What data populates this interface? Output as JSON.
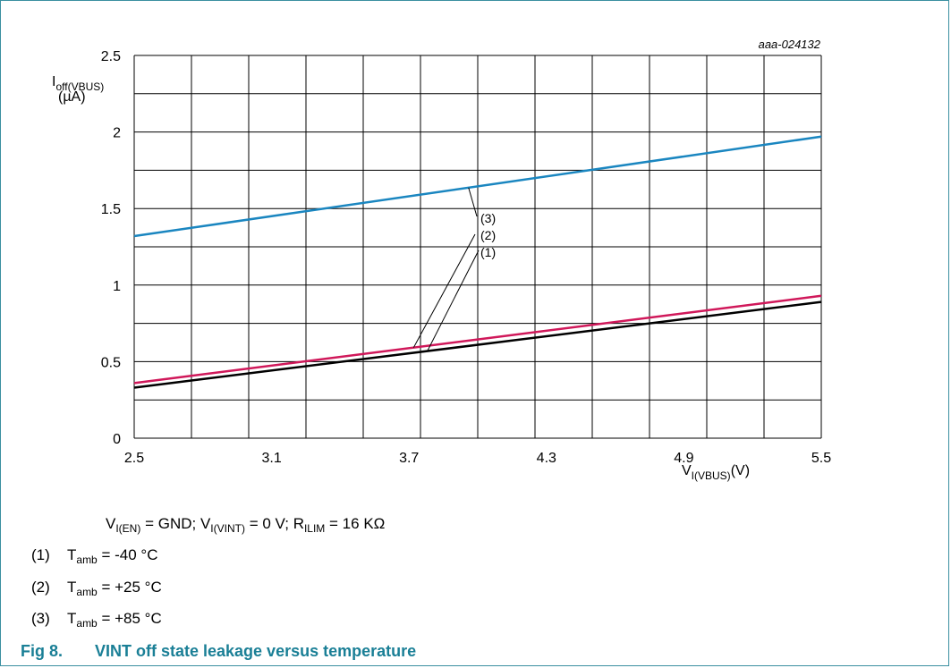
{
  "doc_id": "aaa-024132",
  "axis": {
    "y_main": "I",
    "y_sub": "off(VBUS)",
    "y_unit": "(µA)",
    "x_main": "V",
    "x_sub": "I(VBUS)",
    "x_unit": "(V)"
  },
  "chart_data": {
    "type": "line",
    "xlim": [
      2.5,
      5.5
    ],
    "ylim": [
      0,
      2.5
    ],
    "x_ticks": [
      "2.5",
      "3.1",
      "3.7",
      "4.3",
      "4.9",
      "5.5"
    ],
    "y_ticks": [
      "0",
      "0.5",
      "1",
      "1.5",
      "2",
      "2.5"
    ],
    "grid": true,
    "series": [
      {
        "name": "(1)",
        "color": "#000000",
        "x": [
          2.5,
          5.5
        ],
        "y": [
          0.33,
          0.89
        ]
      },
      {
        "name": "(2)",
        "color": "#d0185a",
        "x": [
          2.5,
          5.5
        ],
        "y": [
          0.36,
          0.93
        ]
      },
      {
        "name": "(3)",
        "color": "#1a86c0",
        "x": [
          2.5,
          5.5
        ],
        "y": [
          1.32,
          1.97
        ]
      }
    ]
  },
  "conditions": {
    "v_en": "V",
    "v_en_sub": "I(EN)",
    "v_en_val": " = GND; ",
    "v_int": "V",
    "v_int_sub": "I(VINT)",
    "v_int_val": " = 0 V; ",
    "r_ilim": "R",
    "r_ilim_sub": "ILIM",
    "r_ilim_val": " = 16 KΩ"
  },
  "notes": [
    {
      "num": "(1)",
      "sym": "T",
      "sub": "amb",
      "val": " = -40 °C"
    },
    {
      "num": "(2)",
      "sym": "T",
      "sub": "amb",
      "val": " = +25 °C"
    },
    {
      "num": "(3)",
      "sym": "T",
      "sub": "amb",
      "val": " = +85 °C"
    }
  ],
  "caption": {
    "number": "Fig 8.",
    "title": "VINT off state leakage versus temperature"
  }
}
